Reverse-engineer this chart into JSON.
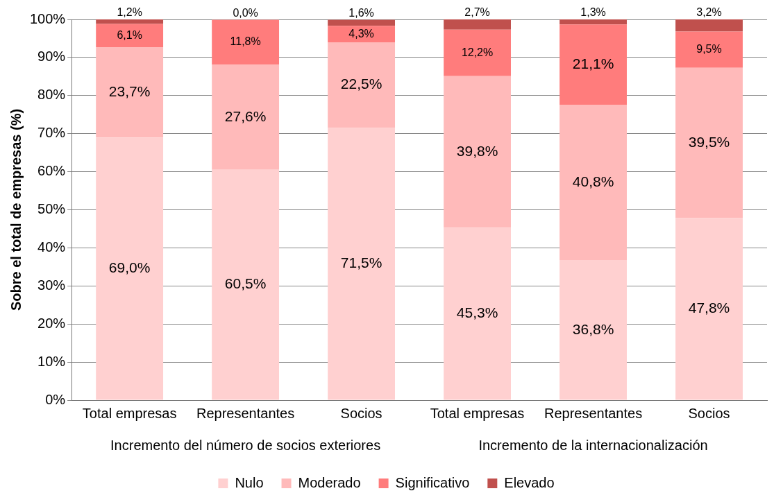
{
  "chart_data": {
    "type": "bar",
    "stacked": true,
    "ylabel": "Sobre el total de empresas (%)",
    "categories": [
      "Total empresas",
      "Representantes",
      "Socios",
      "Total empresas",
      "Representantes",
      "Socios"
    ],
    "annotations": [
      "Incremento del número de socios exteriores",
      "Incremento de la internacionalización"
    ],
    "series": [
      {
        "name": "Nulo",
        "color": "#ffd0d0",
        "values": [
          69.0,
          60.5,
          71.5,
          45.3,
          36.8,
          47.8
        ],
        "value_labels": [
          "69,0%",
          "60,5%",
          "71,5%",
          "45,3%",
          "36,8%",
          "47,8%"
        ]
      },
      {
        "name": "Moderado",
        "color": "#ffbaba",
        "values": [
          23.7,
          27.6,
          22.5,
          39.8,
          40.8,
          39.5
        ],
        "value_labels": [
          "23,7%",
          "27,6%",
          "22,5%",
          "39,8%",
          "40,8%",
          "39,5%"
        ]
      },
      {
        "name": "Significativo",
        "color": "#ff7c7c",
        "values": [
          6.1,
          11.8,
          4.3,
          12.2,
          21.1,
          9.5
        ],
        "value_labels": [
          "6,1%",
          "11,8%",
          "4,3%",
          "12,2%",
          "21,1%",
          "9,5%"
        ]
      },
      {
        "name": "Elevado",
        "color": "#c0504d",
        "values": [
          1.2,
          0.0,
          1.6,
          2.7,
          1.3,
          3.2
        ],
        "value_labels": [
          "1,2%",
          "0,0%",
          "1,6%",
          "2,7%",
          "1,3%",
          "3,2%"
        ]
      }
    ],
    "ylim": [
      0,
      100
    ],
    "yticks": [
      {
        "value": 0,
        "label": "0%"
      },
      {
        "value": 10,
        "label": "10%"
      },
      {
        "value": 20,
        "label": "20%"
      },
      {
        "value": 30,
        "label": "30%"
      },
      {
        "value": 40,
        "label": "40%"
      },
      {
        "value": 50,
        "label": "50%"
      },
      {
        "value": 60,
        "label": "60%"
      },
      {
        "value": 70,
        "label": "70%"
      },
      {
        "value": 80,
        "label": "80%"
      },
      {
        "value": 90,
        "label": "90%"
      },
      {
        "value": 100,
        "label": "100%"
      }
    ],
    "grid": "y",
    "legend": "bottom"
  }
}
